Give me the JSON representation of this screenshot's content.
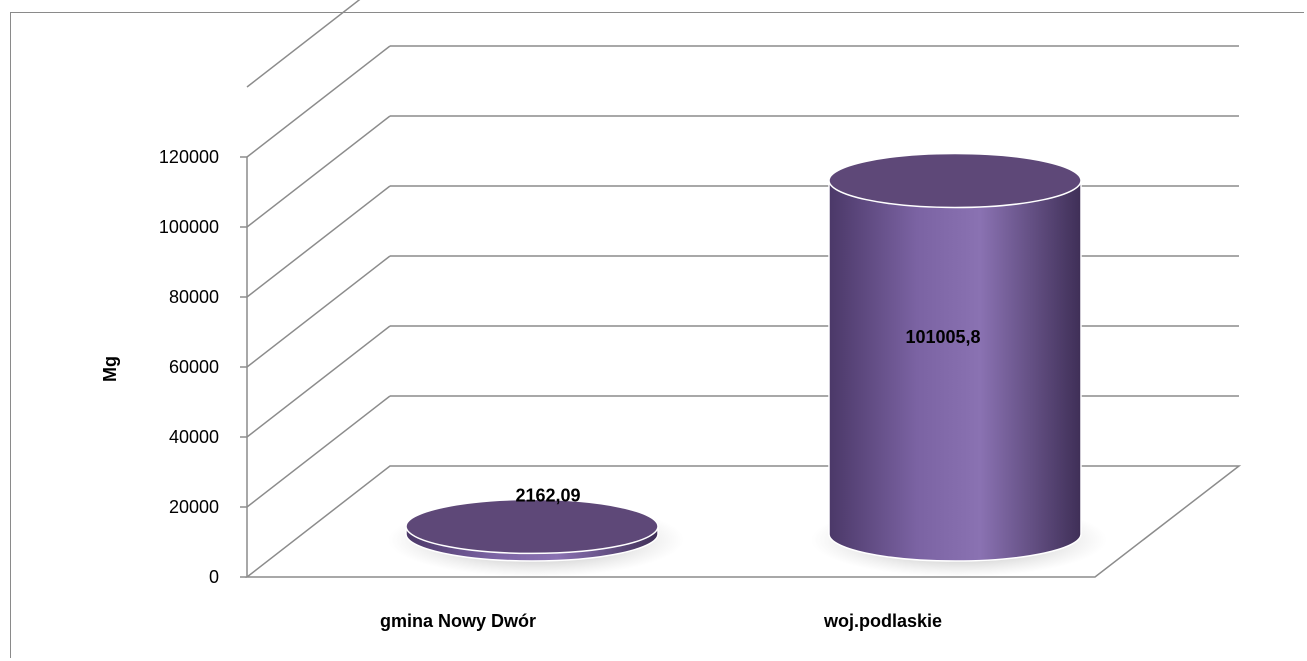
{
  "chart_data": {
    "type": "bar",
    "bar_shape": "cylinder",
    "three_d": true,
    "categories": [
      "gmina Nowy Dwór",
      "woj.podlaskie"
    ],
    "values": [
      2162.09,
      101005.8
    ],
    "data_labels": [
      "2162,09",
      "101005,8"
    ],
    "ylabel": "Mg",
    "ylim": [
      0,
      120000
    ],
    "yticks": [
      "0",
      "20000",
      "40000",
      "60000",
      "80000",
      "100000",
      "120000"
    ],
    "grid": true,
    "legend": "none",
    "colors": {
      "bar": "#7b63a3",
      "bar_top": "#5e4878",
      "bar_dark": "#3f2f57",
      "grid": "#8c8c8c"
    }
  }
}
